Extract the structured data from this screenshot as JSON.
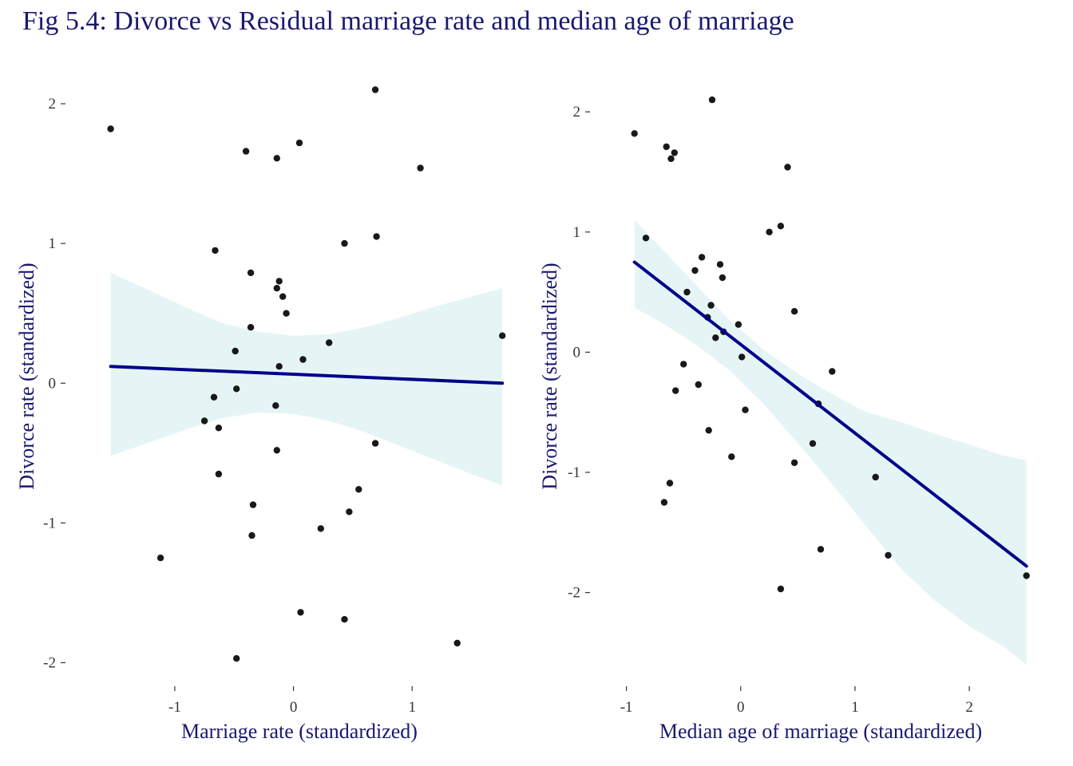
{
  "title": "Fig 5.4: Divorce vs Residual marriage rate and median age of marriage",
  "colors": {
    "title": "#191970",
    "line": "#00008b",
    "band": "#e0f3f3",
    "point": "#000000",
    "tick": "#333333"
  },
  "chart_data": [
    {
      "type": "scatter",
      "xlabel": "Marriage rate (standardized)",
      "ylabel": "Divorce rate (standardized)",
      "xlim": [
        -1.8,
        1.9
      ],
      "ylim": [
        -2.1,
        2.2
      ],
      "xticks": [
        -1,
        0,
        1
      ],
      "yticks": [
        -2,
        -1,
        0,
        1,
        2
      ],
      "grid": false,
      "points": [
        {
          "x": -1.54,
          "y": 1.82
        },
        {
          "x": -1.12,
          "y": -1.25
        },
        {
          "x": -0.75,
          "y": -0.27
        },
        {
          "x": -0.67,
          "y": -0.1
        },
        {
          "x": -0.66,
          "y": 0.95
        },
        {
          "x": -0.63,
          "y": -0.32
        },
        {
          "x": -0.63,
          "y": -0.65
        },
        {
          "x": -0.49,
          "y": 0.23
        },
        {
          "x": -0.48,
          "y": -0.04
        },
        {
          "x": -0.48,
          "y": -1.97
        },
        {
          "x": -0.4,
          "y": 1.66
        },
        {
          "x": -0.36,
          "y": 0.79
        },
        {
          "x": -0.36,
          "y": 0.4
        },
        {
          "x": -0.35,
          "y": -1.09
        },
        {
          "x": -0.34,
          "y": -0.87
        },
        {
          "x": -0.15,
          "y": -0.16
        },
        {
          "x": -0.14,
          "y": 0.68
        },
        {
          "x": -0.14,
          "y": -0.48
        },
        {
          "x": -0.14,
          "y": 1.61
        },
        {
          "x": -0.12,
          "y": 0.73
        },
        {
          "x": -0.12,
          "y": 0.12
        },
        {
          "x": -0.09,
          "y": 0.62
        },
        {
          "x": -0.06,
          "y": 0.5
        },
        {
          "x": 0.05,
          "y": 1.72
        },
        {
          "x": 0.06,
          "y": -1.64
        },
        {
          "x": 0.08,
          "y": 0.17
        },
        {
          "x": 0.23,
          "y": -1.04
        },
        {
          "x": 0.3,
          "y": 0.29
        },
        {
          "x": 0.43,
          "y": 1.0
        },
        {
          "x": 0.43,
          "y": -1.69
        },
        {
          "x": 0.47,
          "y": -0.92
        },
        {
          "x": 0.55,
          "y": -0.76
        },
        {
          "x": 0.69,
          "y": 2.1
        },
        {
          "x": 0.69,
          "y": -0.43
        },
        {
          "x": 0.7,
          "y": 1.05
        },
        {
          "x": 1.07,
          "y": 1.54
        },
        {
          "x": 1.38,
          "y": -1.86
        },
        {
          "x": 1.76,
          "y": 0.34
        }
      ],
      "fit": {
        "x": [
          -1.54,
          1.76
        ],
        "y": [
          0.12,
          0.0
        ]
      },
      "ci_band": {
        "x": [
          -1.54,
          -1.2,
          -0.9,
          -0.6,
          -0.3,
          0.0,
          0.3,
          0.6,
          0.9,
          1.2,
          1.5,
          1.76
        ],
        "lower": [
          -0.52,
          -0.42,
          -0.33,
          -0.25,
          -0.21,
          -0.22,
          -0.27,
          -0.35,
          -0.45,
          -0.55,
          -0.65,
          -0.73
        ],
        "upper": [
          0.79,
          0.66,
          0.54,
          0.43,
          0.37,
          0.34,
          0.35,
          0.4,
          0.47,
          0.55,
          0.62,
          0.68
        ]
      }
    },
    {
      "type": "scatter",
      "xlabel": "Median age of marriage (standardized)",
      "ylabel": "Divorce rate (standardized)",
      "xlim": [
        -1.2,
        2.6
      ],
      "ylim": [
        -2.7,
        2.3
      ],
      "xticks": [
        -1,
        0,
        1,
        2
      ],
      "yticks": [
        -2,
        -1,
        0,
        1,
        2
      ],
      "grid": false,
      "points": [
        {
          "x": -0.93,
          "y": 1.82
        },
        {
          "x": -0.83,
          "y": 0.95
        },
        {
          "x": -0.67,
          "y": -1.25
        },
        {
          "x": -0.65,
          "y": 1.71
        },
        {
          "x": -0.62,
          "y": -1.09
        },
        {
          "x": -0.61,
          "y": 1.61
        },
        {
          "x": -0.58,
          "y": 1.66
        },
        {
          "x": -0.57,
          "y": -0.32
        },
        {
          "x": -0.5,
          "y": -0.1
        },
        {
          "x": -0.47,
          "y": 0.5
        },
        {
          "x": -0.4,
          "y": 0.68
        },
        {
          "x": -0.37,
          "y": -0.27
        },
        {
          "x": -0.34,
          "y": 0.79
        },
        {
          "x": -0.29,
          "y": 0.29
        },
        {
          "x": -0.28,
          "y": -0.65
        },
        {
          "x": -0.26,
          "y": 0.39
        },
        {
          "x": -0.25,
          "y": 2.1
        },
        {
          "x": -0.22,
          "y": 0.12
        },
        {
          "x": -0.18,
          "y": 0.73
        },
        {
          "x": -0.16,
          "y": 0.62
        },
        {
          "x": -0.15,
          "y": 0.17
        },
        {
          "x": -0.08,
          "y": -0.87
        },
        {
          "x": -0.02,
          "y": 0.23
        },
        {
          "x": 0.01,
          "y": -0.04
        },
        {
          "x": 0.04,
          "y": -0.48
        },
        {
          "x": 0.25,
          "y": 1.0
        },
        {
          "x": 0.35,
          "y": -1.97
        },
        {
          "x": 0.35,
          "y": 1.05
        },
        {
          "x": 0.41,
          "y": 1.54
        },
        {
          "x": 0.47,
          "y": 0.34
        },
        {
          "x": 0.47,
          "y": -0.92
        },
        {
          "x": 0.63,
          "y": -0.76
        },
        {
          "x": 0.68,
          "y": -0.43
        },
        {
          "x": 0.7,
          "y": -1.64
        },
        {
          "x": 0.8,
          "y": -0.16
        },
        {
          "x": 1.18,
          "y": -1.04
        },
        {
          "x": 1.29,
          "y": -1.69
        },
        {
          "x": 2.5,
          "y": -1.86
        }
      ],
      "fit": {
        "x": [
          -0.93,
          2.5
        ],
        "y": [
          0.75,
          -1.78
        ]
      },
      "ci_band": {
        "x": [
          -0.93,
          -0.7,
          -0.4,
          -0.1,
          0.2,
          0.5,
          0.8,
          1.1,
          1.4,
          1.7,
          2.0,
          2.3,
          2.5
        ],
        "lower": [
          0.37,
          0.25,
          0.07,
          -0.15,
          -0.43,
          -0.76,
          -1.1,
          -1.45,
          -1.8,
          -2.07,
          -2.28,
          -2.45,
          -2.6
        ],
        "upper": [
          1.1,
          0.87,
          0.57,
          0.27,
          0.02,
          -0.18,
          -0.35,
          -0.5,
          -0.58,
          -0.68,
          -0.77,
          -0.86,
          -0.9
        ]
      }
    }
  ]
}
